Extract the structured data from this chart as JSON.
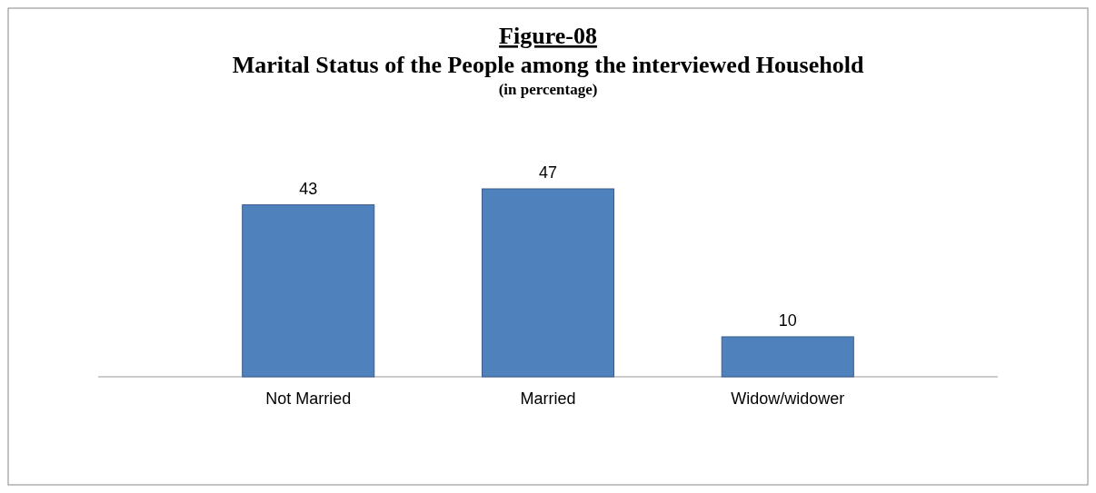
{
  "chart_data": {
    "type": "bar",
    "title": "Figure-08",
    "subtitle": "Marital Status of the People among the interviewed Household",
    "annotations": [
      "(in percentage)"
    ],
    "categories": [
      "Not Married",
      "Married",
      "Widow/widower"
    ],
    "values": [
      43,
      47,
      10
    ],
    "color": "#4f81bd",
    "data_labels": true
  }
}
